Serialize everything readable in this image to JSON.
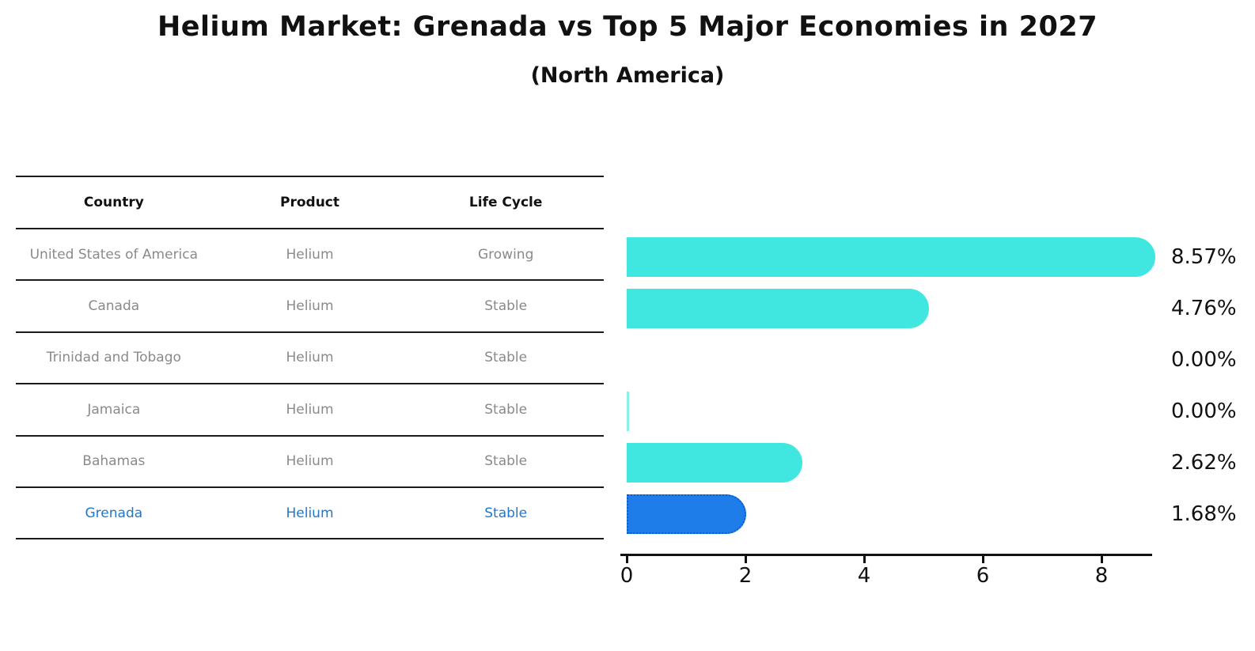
{
  "title": "Helium Market: Grenada vs Top 5 Major Economies in 2027",
  "subtitle": "(North America)",
  "table": {
    "headers": {
      "country": "Country",
      "product": "Product",
      "life_cycle": "Life Cycle"
    },
    "rows": [
      {
        "country": "United States of America",
        "product": "Helium",
        "life_cycle": "Growing",
        "highlight": false
      },
      {
        "country": "Canada",
        "product": "Helium",
        "life_cycle": "Stable",
        "highlight": false
      },
      {
        "country": "Trinidad and Tobago",
        "product": "Helium",
        "life_cycle": "Stable",
        "highlight": false
      },
      {
        "country": "Jamaica",
        "product": "Helium",
        "life_cycle": "Stable",
        "highlight": false
      },
      {
        "country": "Bahamas",
        "product": "Helium",
        "life_cycle": "Stable",
        "highlight": false
      },
      {
        "country": "Grenada",
        "product": "Helium",
        "life_cycle": "Stable",
        "highlight": true
      }
    ]
  },
  "chart_data": {
    "type": "bar",
    "orientation": "horizontal",
    "title": "Helium Market: Grenada vs Top 5 Major Economies in 2027",
    "subtitle": "(North America)",
    "categories": [
      "United States of America",
      "Canada",
      "Trinidad and Tobago",
      "Jamaica",
      "Bahamas",
      "Grenada"
    ],
    "values": [
      8.57,
      4.76,
      0.0,
      0.0,
      2.62,
      1.68
    ],
    "value_labels": [
      "8.57%",
      "4.76%",
      "0.00%",
      "0.00%",
      "2.62%",
      "1.68%"
    ],
    "x_ticks": [
      "0",
      "2",
      "4",
      "6",
      "8"
    ],
    "xlim": [
      0,
      9
    ],
    "xlabel": "",
    "ylabel": "",
    "grid": false,
    "legend": "none",
    "highlight_category": "Grenada",
    "bars": [
      {
        "category": "United States of America",
        "value": 8.57,
        "label": "8.57%",
        "highlight": false,
        "sliver": false
      },
      {
        "category": "Canada",
        "value": 4.76,
        "label": "4.76%",
        "highlight": false,
        "sliver": false
      },
      {
        "category": "Trinidad and Tobago",
        "value": 0.0,
        "label": "0.00%",
        "highlight": false,
        "sliver": false
      },
      {
        "category": "Jamaica",
        "value": 0.0,
        "label": "0.00%",
        "highlight": false,
        "sliver": true
      },
      {
        "category": "Bahamas",
        "value": 2.62,
        "label": "2.62%",
        "highlight": false,
        "sliver": false
      },
      {
        "category": "Grenada",
        "value": 1.68,
        "label": "1.68%",
        "highlight": true,
        "sliver": false
      }
    ]
  },
  "colors": {
    "bar": "#40E7E0",
    "bar_sliver": "#8BF0EA",
    "highlight_fill": "#1E7DE8",
    "highlight_border": "#0C5BD0",
    "highlight_text": "#1F78CD",
    "row_text": "#8A8A8A",
    "header_text": "#111111",
    "axis": "#111111",
    "value_text": "#111111",
    "background": "#FFFFFF"
  }
}
